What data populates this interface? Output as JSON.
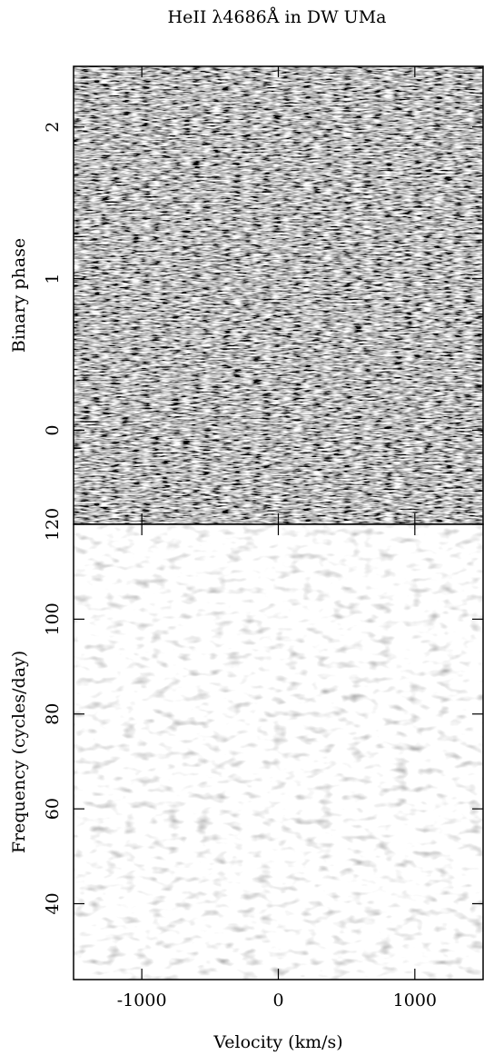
{
  "chart_data": [
    {
      "type": "heatmap",
      "title": "HeII λ4686Å in DW UMa",
      "ylabel": "Binary phase",
      "xlim": [
        -1500,
        1500
      ],
      "xticks": [
        -1000,
        0,
        1000
      ],
      "ylim": [
        -0.62,
        2.4
      ],
      "yticks": [
        0,
        1,
        2
      ]
    },
    {
      "type": "heatmap",
      "xlabel": "Velocity (km/s)",
      "ylabel": "Frequency (cycles/day)",
      "xlim": [
        -1500,
        1500
      ],
      "xticks": [
        -1000,
        0,
        1000
      ],
      "ylim": [
        24,
        120
      ],
      "yticks": [
        40,
        60,
        80,
        100,
        120
      ]
    }
  ]
}
